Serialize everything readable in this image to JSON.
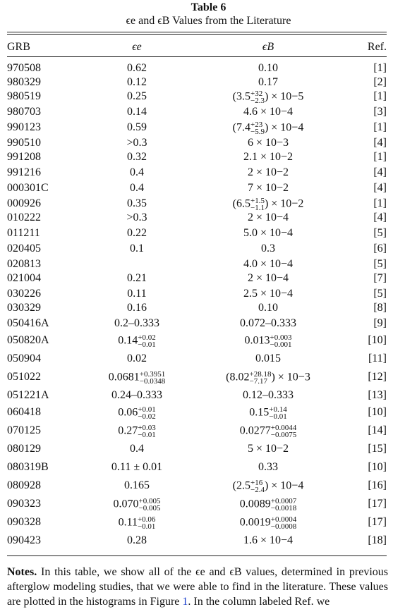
{
  "caption": {
    "title": "Table 6",
    "subtitle": "ϵe and ϵB Values from the Literature"
  },
  "headers": {
    "grb": "GRB",
    "ee": "ϵe",
    "eb": "ϵB",
    "ref": "Ref."
  },
  "rows": [
    {
      "grb": "970508",
      "ee": "0.62",
      "eb": "0.10",
      "ref": "[1]"
    },
    {
      "grb": "980329",
      "ee": "0.12",
      "eb": "0.17",
      "ref": "[2]"
    },
    {
      "grb": "980519",
      "ee": "0.25",
      "eb": "(3.5+32−2.3) × 10−5",
      "ref": "[1]"
    },
    {
      "grb": "980703",
      "ee": "0.14",
      "eb": "4.6 × 10−4",
      "ref": "[3]"
    },
    {
      "grb": "990123",
      "ee": "0.59",
      "eb": "(7.4+23−5.9) × 10−4",
      "ref": "[1]"
    },
    {
      "grb": "990510",
      "ee": ">0.3",
      "eb": "6 × 10−3",
      "ref": "[4]"
    },
    {
      "grb": "991208",
      "ee": "0.32",
      "eb": "2.1 × 10−2",
      "ref": "[1]"
    },
    {
      "grb": "991216",
      "ee": "0.4",
      "eb": "2 × 10−2",
      "ref": "[4]"
    },
    {
      "grb": "000301C",
      "ee": "0.4",
      "eb": "7 × 10−2",
      "ref": "[4]"
    },
    {
      "grb": "000926",
      "ee": "0.35",
      "eb": "(6.5+1.5−1.1) × 10−2",
      "ref": "[1]"
    },
    {
      "grb": "010222",
      "ee": ">0.3",
      "eb": "2 × 10−4",
      "ref": "[4]"
    },
    {
      "grb": "011211",
      "ee": "0.22",
      "eb": "5.0 × 10−4",
      "ref": "[5]"
    },
    {
      "grb": "020405",
      "ee": "0.1",
      "eb": "0.3",
      "ref": "[6]"
    },
    {
      "grb": "020813",
      "ee": "",
      "eb": "4.0 × 10−4",
      "ref": "[5]"
    },
    {
      "grb": "021004",
      "ee": "0.21",
      "eb": "2 × 10−4",
      "ref": "[7]"
    },
    {
      "grb": "030226",
      "ee": "0.11",
      "eb": "2.5 × 10−4",
      "ref": "[5]"
    },
    {
      "grb": "030329",
      "ee": "0.16",
      "eb": "0.10",
      "ref": "[8]"
    },
    {
      "grb": "050416A",
      "ee": "0.2–0.333",
      "eb": "0.072–0.333",
      "ref": "[9]"
    },
    {
      "grb": "050820A",
      "ee": "0.14+0.02−0.01",
      "eb": "0.013+0.003−0.001",
      "ref": "[10]"
    },
    {
      "grb": "050904",
      "ee": "0.02",
      "eb": "0.015",
      "ref": "[11]"
    },
    {
      "grb": "051022",
      "ee": "0.0681+0.3951−0.0348",
      "eb": "(8.02+28.18−7.17) × 10−3",
      "ref": "[12]"
    },
    {
      "grb": "051221A",
      "ee": "0.24–0.333",
      "eb": "0.12–0.333",
      "ref": "[13]"
    },
    {
      "grb": "060418",
      "ee": "0.06+0.01−0.02",
      "eb": "0.15+0.14−0.01",
      "ref": "[10]"
    },
    {
      "grb": "070125",
      "ee": "0.27+0.03−0.01",
      "eb": "0.0277+0.0044−0.0075",
      "ref": "[14]"
    },
    {
      "grb": "080129",
      "ee": "0.4",
      "eb": "5 × 10−2",
      "ref": "[15]"
    },
    {
      "grb": "080319B",
      "ee": "0.11 ± 0.01",
      "eb": "0.33",
      "ref": "[10]"
    },
    {
      "grb": "080928",
      "ee": "0.165",
      "eb": "(2.5+16−2.4) × 10−4",
      "ref": "[16]"
    },
    {
      "grb": "090323",
      "ee": "0.070+0.005−0.005",
      "eb": "0.0089+0.0007−0.0018",
      "ref": "[17]"
    },
    {
      "grb": "090328",
      "ee": "0.11+0.06−0.01",
      "eb": "0.0019+0.0004−0.0008",
      "ref": "[17]"
    },
    {
      "grb": "090423",
      "ee": "0.28",
      "eb": "1.6 × 10−4",
      "ref": "[18]"
    }
  ],
  "notes": {
    "label": "Notes.",
    "text_1": " In this table, we show all of the ϵe and ϵB values, determined in previous afterglow modeling studies, that we were able to find in the literature. These values are plotted in the histograms in Figure ",
    "figure_ref": "1",
    "text_2": ". In the column labeled Ref. we"
  },
  "colors": {
    "text": "#111111",
    "link": "#1a3fcc"
  }
}
